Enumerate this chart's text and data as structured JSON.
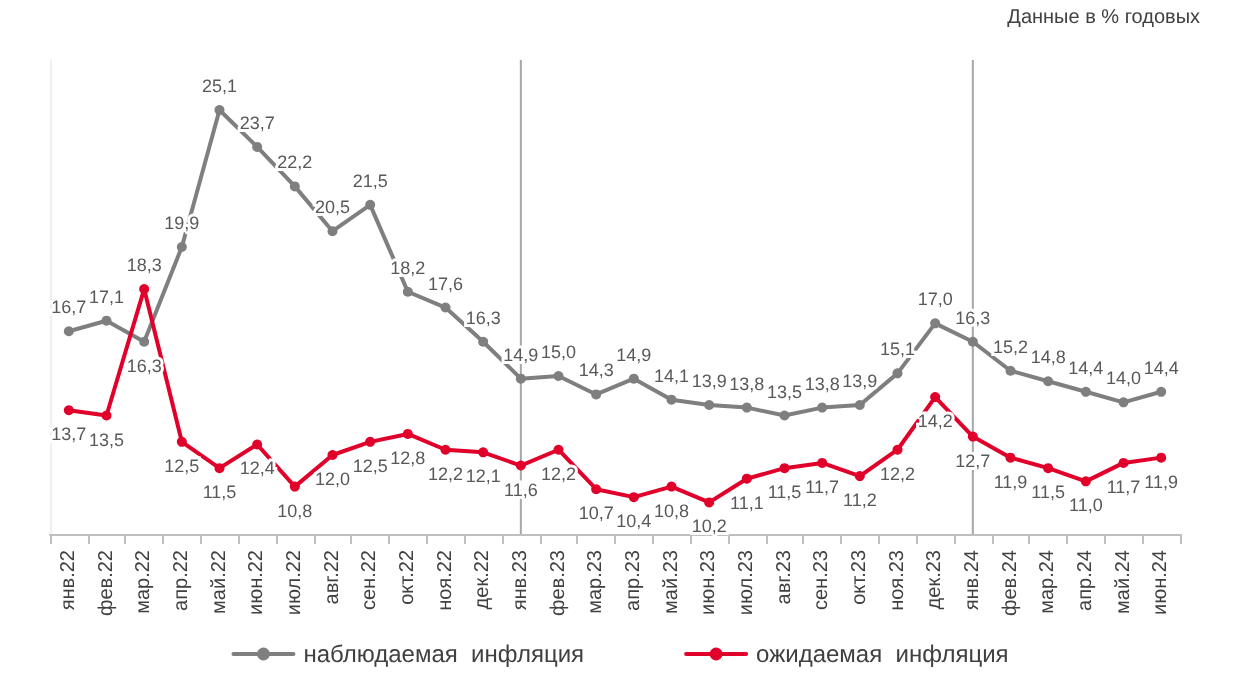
{
  "chart_data": {
    "type": "line",
    "annotations": [
      "Данные в % годовых"
    ],
    "categories": [
      "янв.22",
      "фев.22",
      "мар.22",
      "апр.22",
      "май.22",
      "июн.22",
      "июл.22",
      "авг.22",
      "сен.22",
      "окт.22",
      "ноя.22",
      "дек.22",
      "янв.23",
      "фев.23",
      "мар.23",
      "апр.23",
      "май.23",
      "июн.23",
      "июл.23",
      "авг.23",
      "сен.23",
      "окт.23",
      "ноя.23",
      "дек.23",
      "янв.24",
      "фев.24",
      "мар.24",
      "апр.24",
      "май.24",
      "июн.24"
    ],
    "series": [
      {
        "name": "наблюдаемая  инфляция",
        "color": "#7f7f7f",
        "values": [
          16.7,
          17.1,
          16.3,
          19.9,
          25.1,
          23.7,
          22.2,
          20.5,
          21.5,
          18.2,
          17.6,
          16.3,
          14.9,
          15.0,
          14.3,
          14.9,
          14.1,
          13.9,
          13.8,
          13.5,
          13.8,
          13.9,
          15.1,
          17.0,
          16.3,
          15.2,
          14.8,
          14.4,
          14.0,
          14.4
        ],
        "value_labels": [
          "16,7",
          "17,1",
          "16,3",
          "19,9",
          "25,1",
          "23,7",
          "22,2",
          "20,5",
          "21,5",
          "18,2",
          "17,6",
          "16,3",
          "14,9",
          "15,0",
          "14,3",
          "14,9",
          "14,1",
          "13,9",
          "13,8",
          "13,5",
          "13,8",
          "13,9",
          "15,1",
          "17,0",
          "16,3",
          "15,2",
          "14,8",
          "14,4",
          "14,0",
          "14,4"
        ]
      },
      {
        "name": "ожидаемая  инфляция",
        "color": "#e0002a",
        "values": [
          13.7,
          13.5,
          18.3,
          12.5,
          11.5,
          12.4,
          10.8,
          12.0,
          12.5,
          12.8,
          12.2,
          12.1,
          11.6,
          12.2,
          10.7,
          10.4,
          10.8,
          10.2,
          11.1,
          11.5,
          11.7,
          11.2,
          12.2,
          14.2,
          12.7,
          11.9,
          11.5,
          11.0,
          11.7,
          11.9
        ],
        "value_labels": [
          "13,7",
          "13,5",
          "18,3",
          "12,5",
          "11,5",
          "12,4",
          "10,8",
          "12,0",
          "12,5",
          "12,8",
          "12,2",
          "12,1",
          "11,6",
          "12,2",
          "10,7",
          "10,4",
          "10,8",
          "10,2",
          "11,1",
          "11,5",
          "11,7",
          "11,2",
          "12,2",
          "14,2",
          "12,7",
          "11,9",
          "11,5",
          "11,0",
          "11,7",
          "11,9"
        ]
      }
    ],
    "ref_lines": [
      {
        "axis": "x",
        "value": "янв.23",
        "color": "#a6a6a6"
      },
      {
        "axis": "x",
        "value": "янв.24",
        "color": "#a6a6a6"
      }
    ],
    "grid": false,
    "legend": "bottom",
    "marker": "circle",
    "line_style": "solid"
  }
}
